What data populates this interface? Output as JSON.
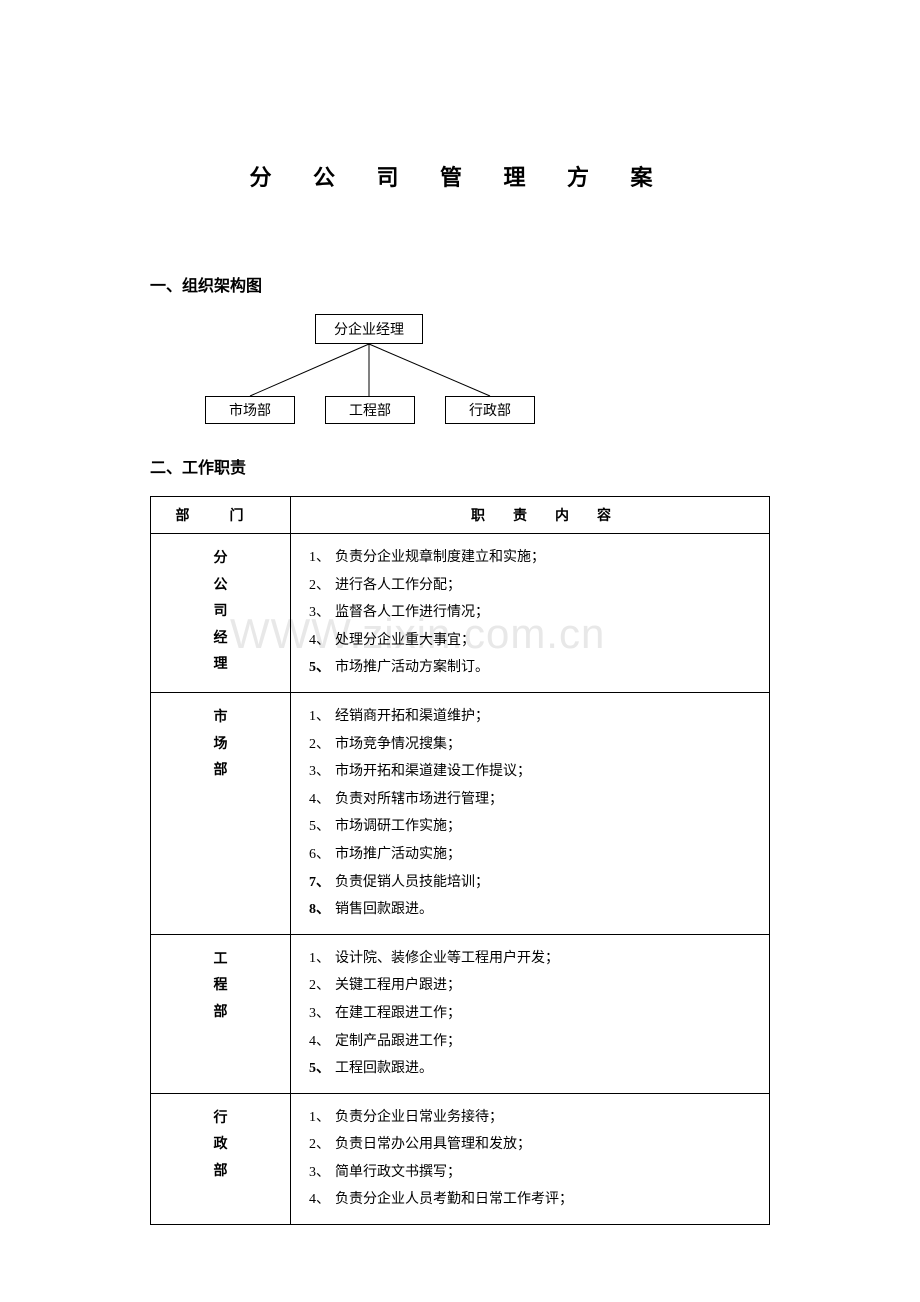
{
  "title": "分 公 司 管 理 方 案",
  "watermark": "WWW.zixin.com.cn",
  "section1": {
    "heading": "一、组织架构图",
    "org": {
      "top": "分企业经理",
      "left": "市场部",
      "mid": "工程部",
      "right": "行政部"
    }
  },
  "section2": {
    "heading": "二、工作职责",
    "table": {
      "header_dept": "部门",
      "header_content": "职责内容",
      "rows": [
        {
          "dept": "分公司经理",
          "dept_chars": [
            "分",
            "公",
            "司",
            "经",
            "理"
          ],
          "items": [
            "负责分企业规章制度建立和实施；",
            "进行各人工作分配；",
            "监督各人工作进行情况；",
            "处理分企业重大事宜；",
            "市场推广活动方案制订。"
          ],
          "bold_nums": [
            5
          ]
        },
        {
          "dept": "市场部",
          "dept_chars": [
            "市",
            "场",
            "部"
          ],
          "items": [
            "经销商开拓和渠道维护；",
            "市场竞争情况搜集；",
            "市场开拓和渠道建设工作提议；",
            "负责对所辖市场进行管理；",
            "市场调研工作实施；",
            "市场推广活动实施；",
            "负责促销人员技能培训；",
            "销售回款跟进。"
          ],
          "bold_nums": [
            7,
            8
          ]
        },
        {
          "dept": "工程部",
          "dept_chars": [
            "工",
            "程",
            "部"
          ],
          "items": [
            "设计院、装修企业等工程用户开发；",
            "关键工程用户跟进；",
            "在建工程跟进工作；",
            "定制产品跟进工作；",
            "工程回款跟进。"
          ],
          "bold_nums": [
            5
          ]
        },
        {
          "dept": "行政部",
          "dept_chars": [
            "行",
            "政",
            "部"
          ],
          "items": [
            "负责分企业日常业务接待；",
            "负责日常办公用具管理和发放；",
            "简单行政文书撰写；",
            "负责分企业人员考勤和日常工作考评；"
          ],
          "bold_nums": []
        }
      ]
    }
  },
  "colors": {
    "text": "#000000",
    "border": "#000000",
    "background": "#ffffff",
    "watermark": "#e8e8e8"
  }
}
